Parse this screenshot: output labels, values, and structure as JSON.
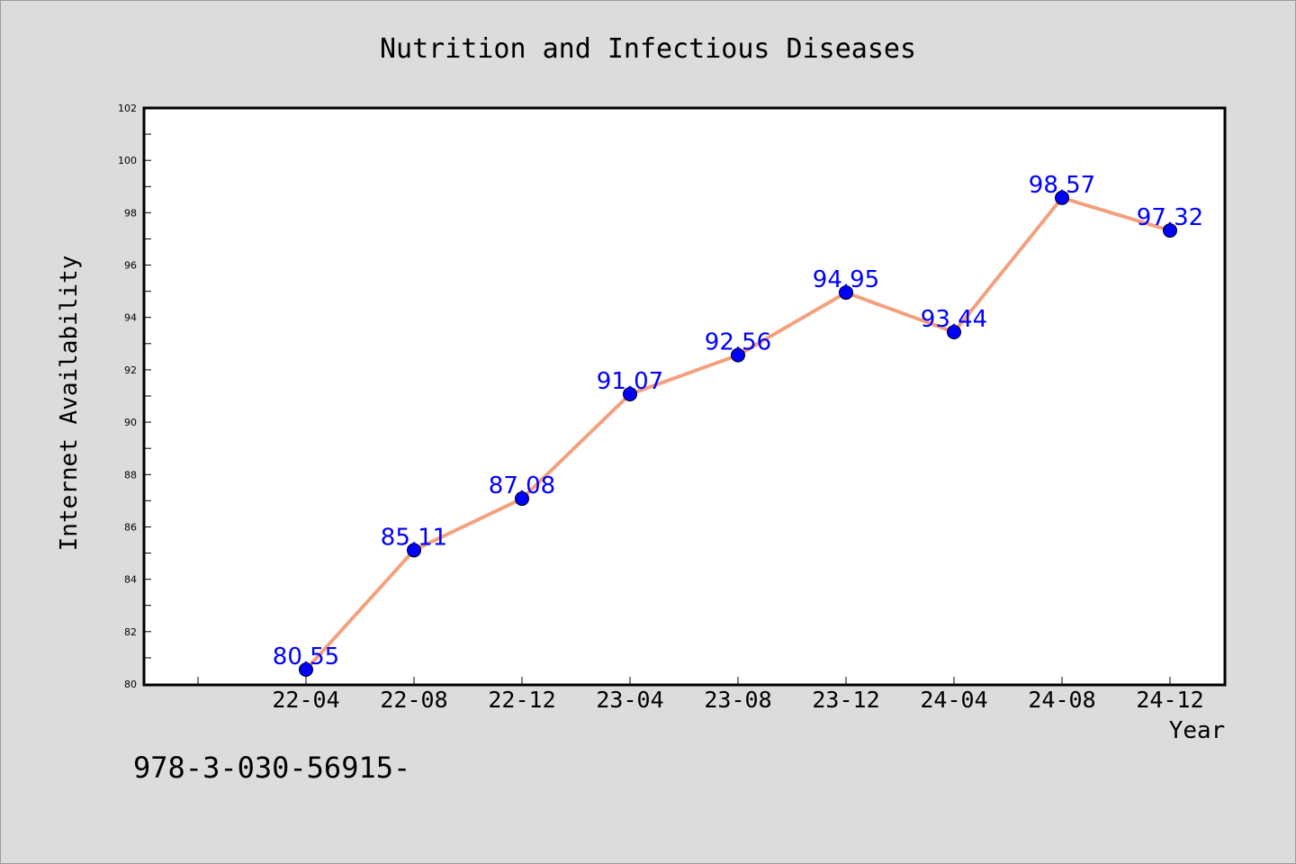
{
  "chart_data": {
    "type": "line",
    "title": "Nutrition and Infectious Diseases",
    "xlabel": "Year",
    "ylabel": "Internet Availability",
    "categories": [
      "22-04",
      "22-08",
      "22-12",
      "23-04",
      "23-08",
      "23-12",
      "24-04",
      "24-08",
      "24-12"
    ],
    "series": [
      {
        "values": [
          80.55,
          85.11,
          87.08,
          91.07,
          92.56,
          94.95,
          93.44,
          98.57,
          97.32
        ],
        "line_color": "#f4a07e",
        "marker_color": "#0000ff"
      }
    ],
    "data_labels": [
      "80.55",
      "85.11",
      "87.08",
      "91.07",
      "92.56",
      "94.95",
      "93.44",
      "98.57",
      "97.32"
    ],
    "data_label_color": "#0000ff",
    "ylim": [
      80,
      102
    ],
    "yticks": [
      80,
      82,
      84,
      86,
      88,
      90,
      92,
      94,
      96,
      98,
      100,
      102
    ],
    "grid": false,
    "legend": "none"
  },
  "footer": {
    "text": "978-3-030-56915-"
  }
}
